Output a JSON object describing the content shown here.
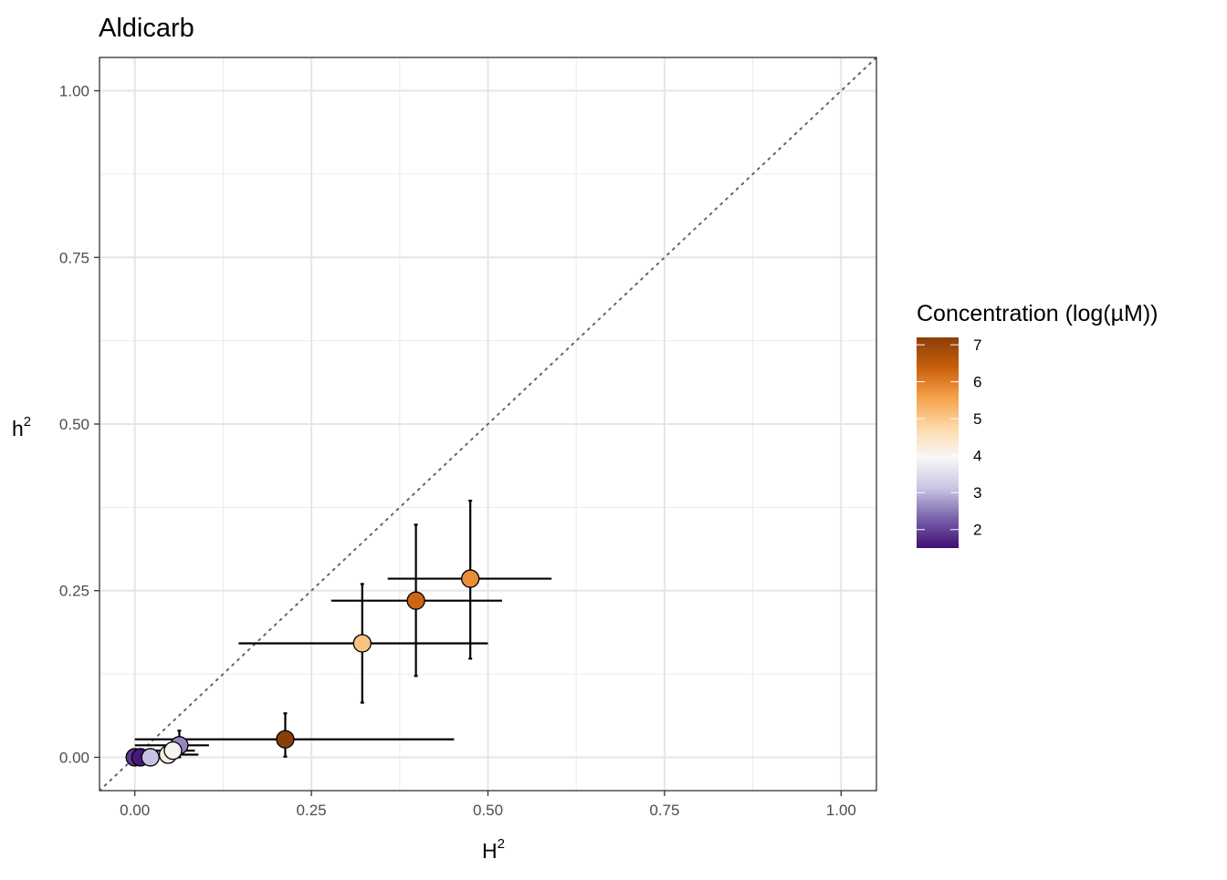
{
  "chart_data": {
    "type": "scatter",
    "title": "Aldicarb",
    "xlabel": {
      "base": "H",
      "sup": "2"
    },
    "ylabel": {
      "base": "h",
      "sup": "2"
    },
    "xlim": [
      -0.05,
      1.05
    ],
    "ylim": [
      -0.05,
      1.05
    ],
    "x_ticks": [
      "0.00",
      "0.25",
      "0.50",
      "0.75",
      "1.00"
    ],
    "y_ticks": [
      "0.00",
      "0.25",
      "0.50",
      "0.75",
      "1.00"
    ],
    "grid": true,
    "reference_line": {
      "slope": 1,
      "intercept": 0,
      "style": "dotted",
      "color": "#666666"
    },
    "legend": {
      "title": "Concentration (log(µM))",
      "placement": "right",
      "min": 1.5,
      "max": 7.2,
      "ticks": [
        "2",
        "3",
        "4",
        "5",
        "6",
        "7"
      ],
      "colors": [
        "#3f0f73",
        "#7a62ad",
        "#c9c6e3",
        "#f7f7f7",
        "#fdd9a9",
        "#f6a24a",
        "#c85f0c",
        "#8a3f08"
      ]
    },
    "points": [
      {
        "x": 0.0,
        "y": 0.0,
        "conc": 1.9,
        "x_err": [
          0.0,
          0.0
        ],
        "y_err": [
          0.0,
          0.0
        ]
      },
      {
        "x": 0.008,
        "y": 0.0,
        "conc": 1.6,
        "x_err": [
          0.0,
          0.0
        ],
        "y_err": [
          0.0,
          0.0
        ]
      },
      {
        "x": 0.022,
        "y": 0.0,
        "conc": 3.1,
        "x_err": [
          0.0,
          0.0
        ],
        "y_err": [
          0.0,
          0.0
        ]
      },
      {
        "x": 0.063,
        "y": 0.018,
        "conc": 2.6,
        "x_err": [
          0.0,
          0.105
        ],
        "y_err": [
          0.0,
          0.04
        ]
      },
      {
        "x": 0.047,
        "y": 0.004,
        "conc": 4.2,
        "x_err": [
          0.0,
          0.09
        ],
        "y_err": [
          0.0,
          0.01
        ]
      },
      {
        "x": 0.054,
        "y": 0.01,
        "conc": 4.0,
        "x_err": [
          0.03,
          0.085
        ],
        "y_err": [
          0.0,
          0.02
        ]
      },
      {
        "x": 0.213,
        "y": 0.027,
        "conc": 7.2,
        "x_err": [
          0.0,
          0.452
        ],
        "y_err": [
          0.001,
          0.066
        ]
      },
      {
        "x": 0.322,
        "y": 0.171,
        "conc": 5.1,
        "x_err": [
          0.147,
          0.5
        ],
        "y_err": [
          0.082,
          0.26
        ]
      },
      {
        "x": 0.398,
        "y": 0.235,
        "conc": 6.3,
        "x_err": [
          0.278,
          0.52
        ],
        "y_err": [
          0.122,
          0.349
        ]
      },
      {
        "x": 0.475,
        "y": 0.268,
        "conc": 5.8,
        "x_err": [
          0.358,
          0.59
        ],
        "y_err": [
          0.148,
          0.385
        ]
      }
    ]
  }
}
